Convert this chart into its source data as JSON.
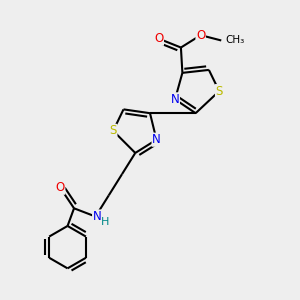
{
  "background_color": "#eeeeee",
  "bond_color": "#000000",
  "bond_width": 1.5,
  "atom_colors": {
    "S": "#bbbb00",
    "N": "#0000ee",
    "O": "#ee0000",
    "H": "#008888"
  },
  "font_size": 8.5,
  "font_size_small": 7.5
}
